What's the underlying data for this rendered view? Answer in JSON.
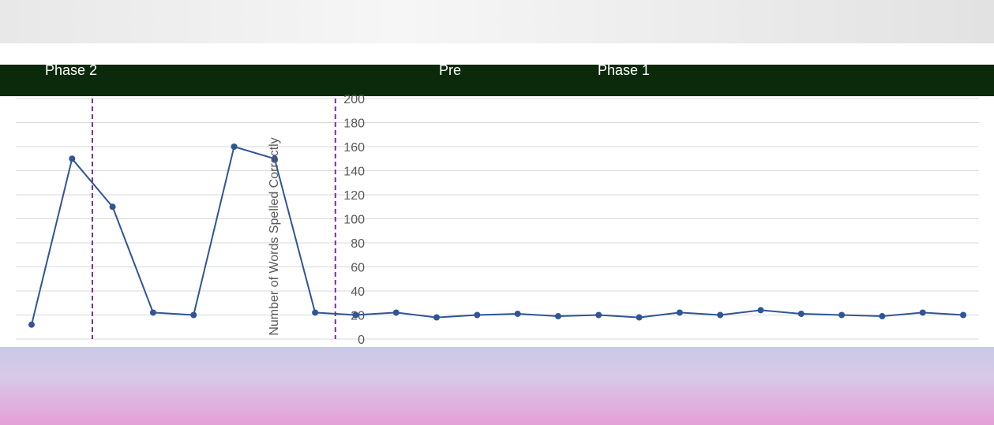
{
  "chart_data": {
    "type": "line",
    "title": "",
    "xlabel": "",
    "ylabel": "Number of Words Spelled Correctly",
    "ylim": [
      0,
      200
    ],
    "yticks": [
      0,
      20,
      40,
      60,
      80,
      100,
      120,
      140,
      160,
      180,
      200
    ],
    "phase_labels": [
      "Pre",
      "Phase 1",
      "Phase 2"
    ],
    "series": [
      {
        "color": "#2f5597",
        "values": [
          12,
          150,
          110,
          22,
          20,
          160,
          150,
          22,
          20,
          22,
          18,
          20,
          21,
          19,
          20,
          18,
          22,
          20,
          24,
          21,
          20,
          19,
          22,
          20
        ]
      }
    ],
    "x": [
      1,
      2,
      3,
      4,
      5,
      6,
      7,
      8,
      9,
      10,
      11,
      12,
      13,
      14,
      15,
      16,
      17,
      18,
      19,
      20,
      21,
      22,
      23,
      24
    ],
    "grid": true,
    "colors": {
      "banner": "#eeeeee",
      "phase_bar": "#0b2a0b",
      "phase_line": "#7030a0",
      "data_line": "#2f5597",
      "gridline": "#d9d9d9"
    }
  }
}
